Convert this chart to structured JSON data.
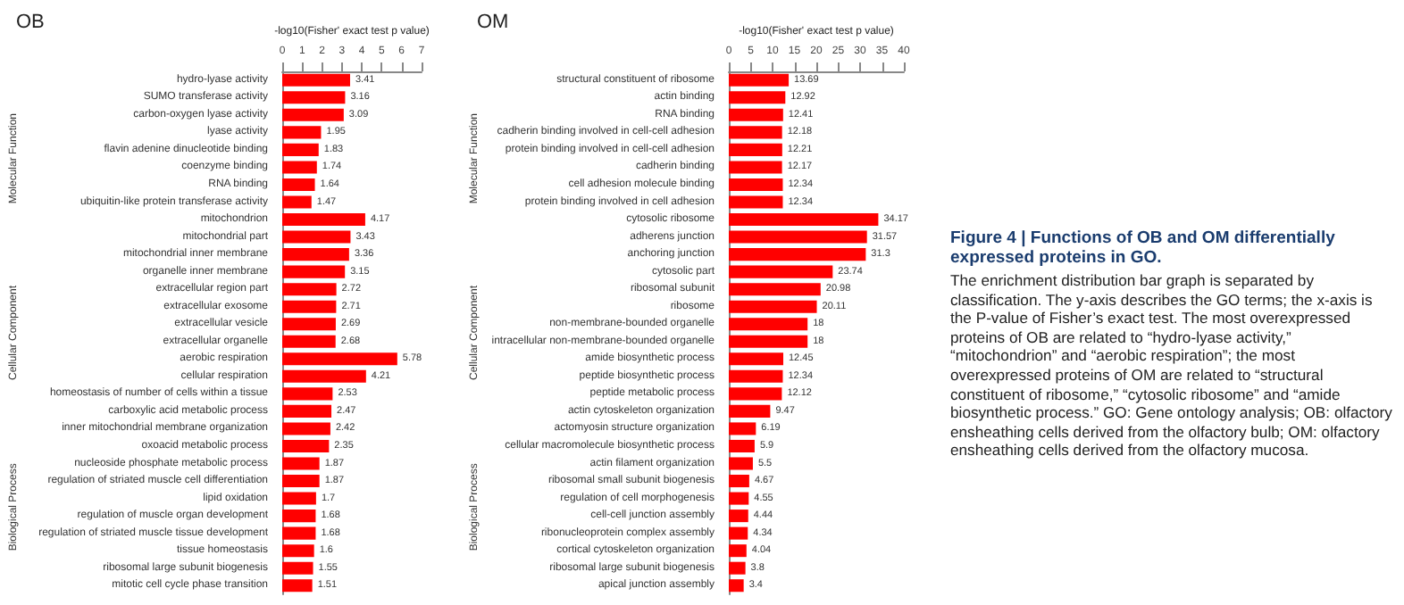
{
  "chart_data": [
    {
      "type": "bar",
      "orientation": "horizontal",
      "title": "OB",
      "xlabel": "-log10(Fisher' exact test p value)",
      "xlim": [
        0,
        7
      ],
      "xticks": [
        0,
        1,
        2,
        3,
        4,
        5,
        6,
        7
      ],
      "color": "#ff0000",
      "data_labels": true,
      "categories": [
        "hydro-lyase activity",
        "SUMO transferase activity",
        "carbon-oxygen lyase activity",
        "lyase activity",
        "flavin adenine dinucleotide binding",
        "coenzyme binding",
        "RNA binding",
        "ubiquitin-like protein transferase activity",
        "mitochondrion",
        "mitochondrial part",
        "mitochondrial inner membrane",
        "organelle inner membrane",
        "extracellular region part",
        "extracellular exosome",
        "extracellular vesicle",
        "extracellular organelle",
        "aerobic respiration",
        "cellular respiration",
        "homeostasis of number of cells within a tissue",
        "carboxylic acid metabolic process",
        "inner mitochondrial membrane organization",
        "oxoacid metabolic process",
        "nucleoside phosphate metabolic process",
        "regulation of striated muscle cell differentiation",
        "lipid oxidation",
        "regulation of muscle organ development",
        "regulation of striated muscle tissue development",
        "tissue homeostasis",
        "ribosomal large subunit biogenesis",
        "mitotic cell cycle phase transition"
      ],
      "values": [
        3.41,
        3.16,
        3.09,
        1.95,
        1.83,
        1.74,
        1.64,
        1.47,
        4.17,
        3.43,
        3.36,
        3.15,
        2.72,
        2.71,
        2.69,
        2.68,
        5.78,
        4.21,
        2.53,
        2.47,
        2.42,
        2.35,
        1.87,
        1.87,
        1.7,
        1.68,
        1.68,
        1.6,
        1.55,
        1.51
      ],
      "annotations": [
        "Molecular Function",
        "Cellular Component",
        "Biological Process"
      ]
    },
    {
      "type": "bar",
      "orientation": "horizontal",
      "title": "OM",
      "xlabel": "-log10(Fisher' exact test p value)",
      "xlim": [
        0,
        40
      ],
      "xticks": [
        0,
        5,
        10,
        15,
        20,
        25,
        30,
        35,
        40
      ],
      "color": "#ff0000",
      "data_labels": true,
      "categories": [
        "structural constituent of ribosome",
        "actin binding",
        "RNA binding",
        "cadherin binding involved in cell-cell adhesion",
        "protein binding involved in cell-cell adhesion",
        "cadherin binding",
        "cell adhesion molecule binding",
        "protein binding involved in cell adhesion",
        "cytosolic ribosome",
        "adherens junction",
        "anchoring junction",
        "cytosolic part",
        "ribosomal subunit",
        "ribosome",
        "non-membrane-bounded organelle",
        "intracellular non-membrane-bounded organelle",
        "amide biosynthetic process",
        "peptide biosynthetic process",
        "peptide metabolic process",
        "actin cytoskeleton organization",
        "actomyosin structure organization",
        "cellular macromolecule biosynthetic process",
        "actin filament organization",
        "ribosomal small subunit biogenesis",
        "regulation of cell morphogenesis",
        "cell-cell junction assembly",
        "ribonucleoprotein complex assembly",
        "cortical cytoskeleton organization",
        "ribosomal large subunit biogenesis",
        "apical junction assembly"
      ],
      "values": [
        13.69,
        12.92,
        12.41,
        12.18,
        12.21,
        12.17,
        12.34,
        12.34,
        34.17,
        31.57,
        31.3,
        23.74,
        20.98,
        20.11,
        18,
        18,
        12.45,
        12.34,
        12.12,
        9.47,
        6.19,
        5.9,
        5.5,
        4.67,
        4.55,
        4.44,
        4.34,
        4.04,
        3.8,
        3.4
      ],
      "annotations": [
        "Molecular Function",
        "Cellular Component",
        "Biological Process"
      ]
    },
    {
      "type": "other",
      "title": "Figure 4 | Functions of OB and OM differentially expressed proteins in GO.",
      "annotations": [
        "The enrichment distribution bar graph is separated by classification. The y-axis describes the GO terms; the x-axis is the P-value of Fisher’s exact test. The most overexpressed proteins of OB are related to “hydro-lyase activity,” “mitochondrion” and “aerobic respiration”; the most overexpressed proteins of OM are related to “structural constituent of ribosome,” “cytosolic ribosome” and “amide biosynthetic process.” GO: Gene ontology analysis; OB: olfactory ensheathing cells derived from the olfactory bulb; OM: olfactory ensheathing cells derived from the olfactory mucosa."
      ]
    }
  ]
}
